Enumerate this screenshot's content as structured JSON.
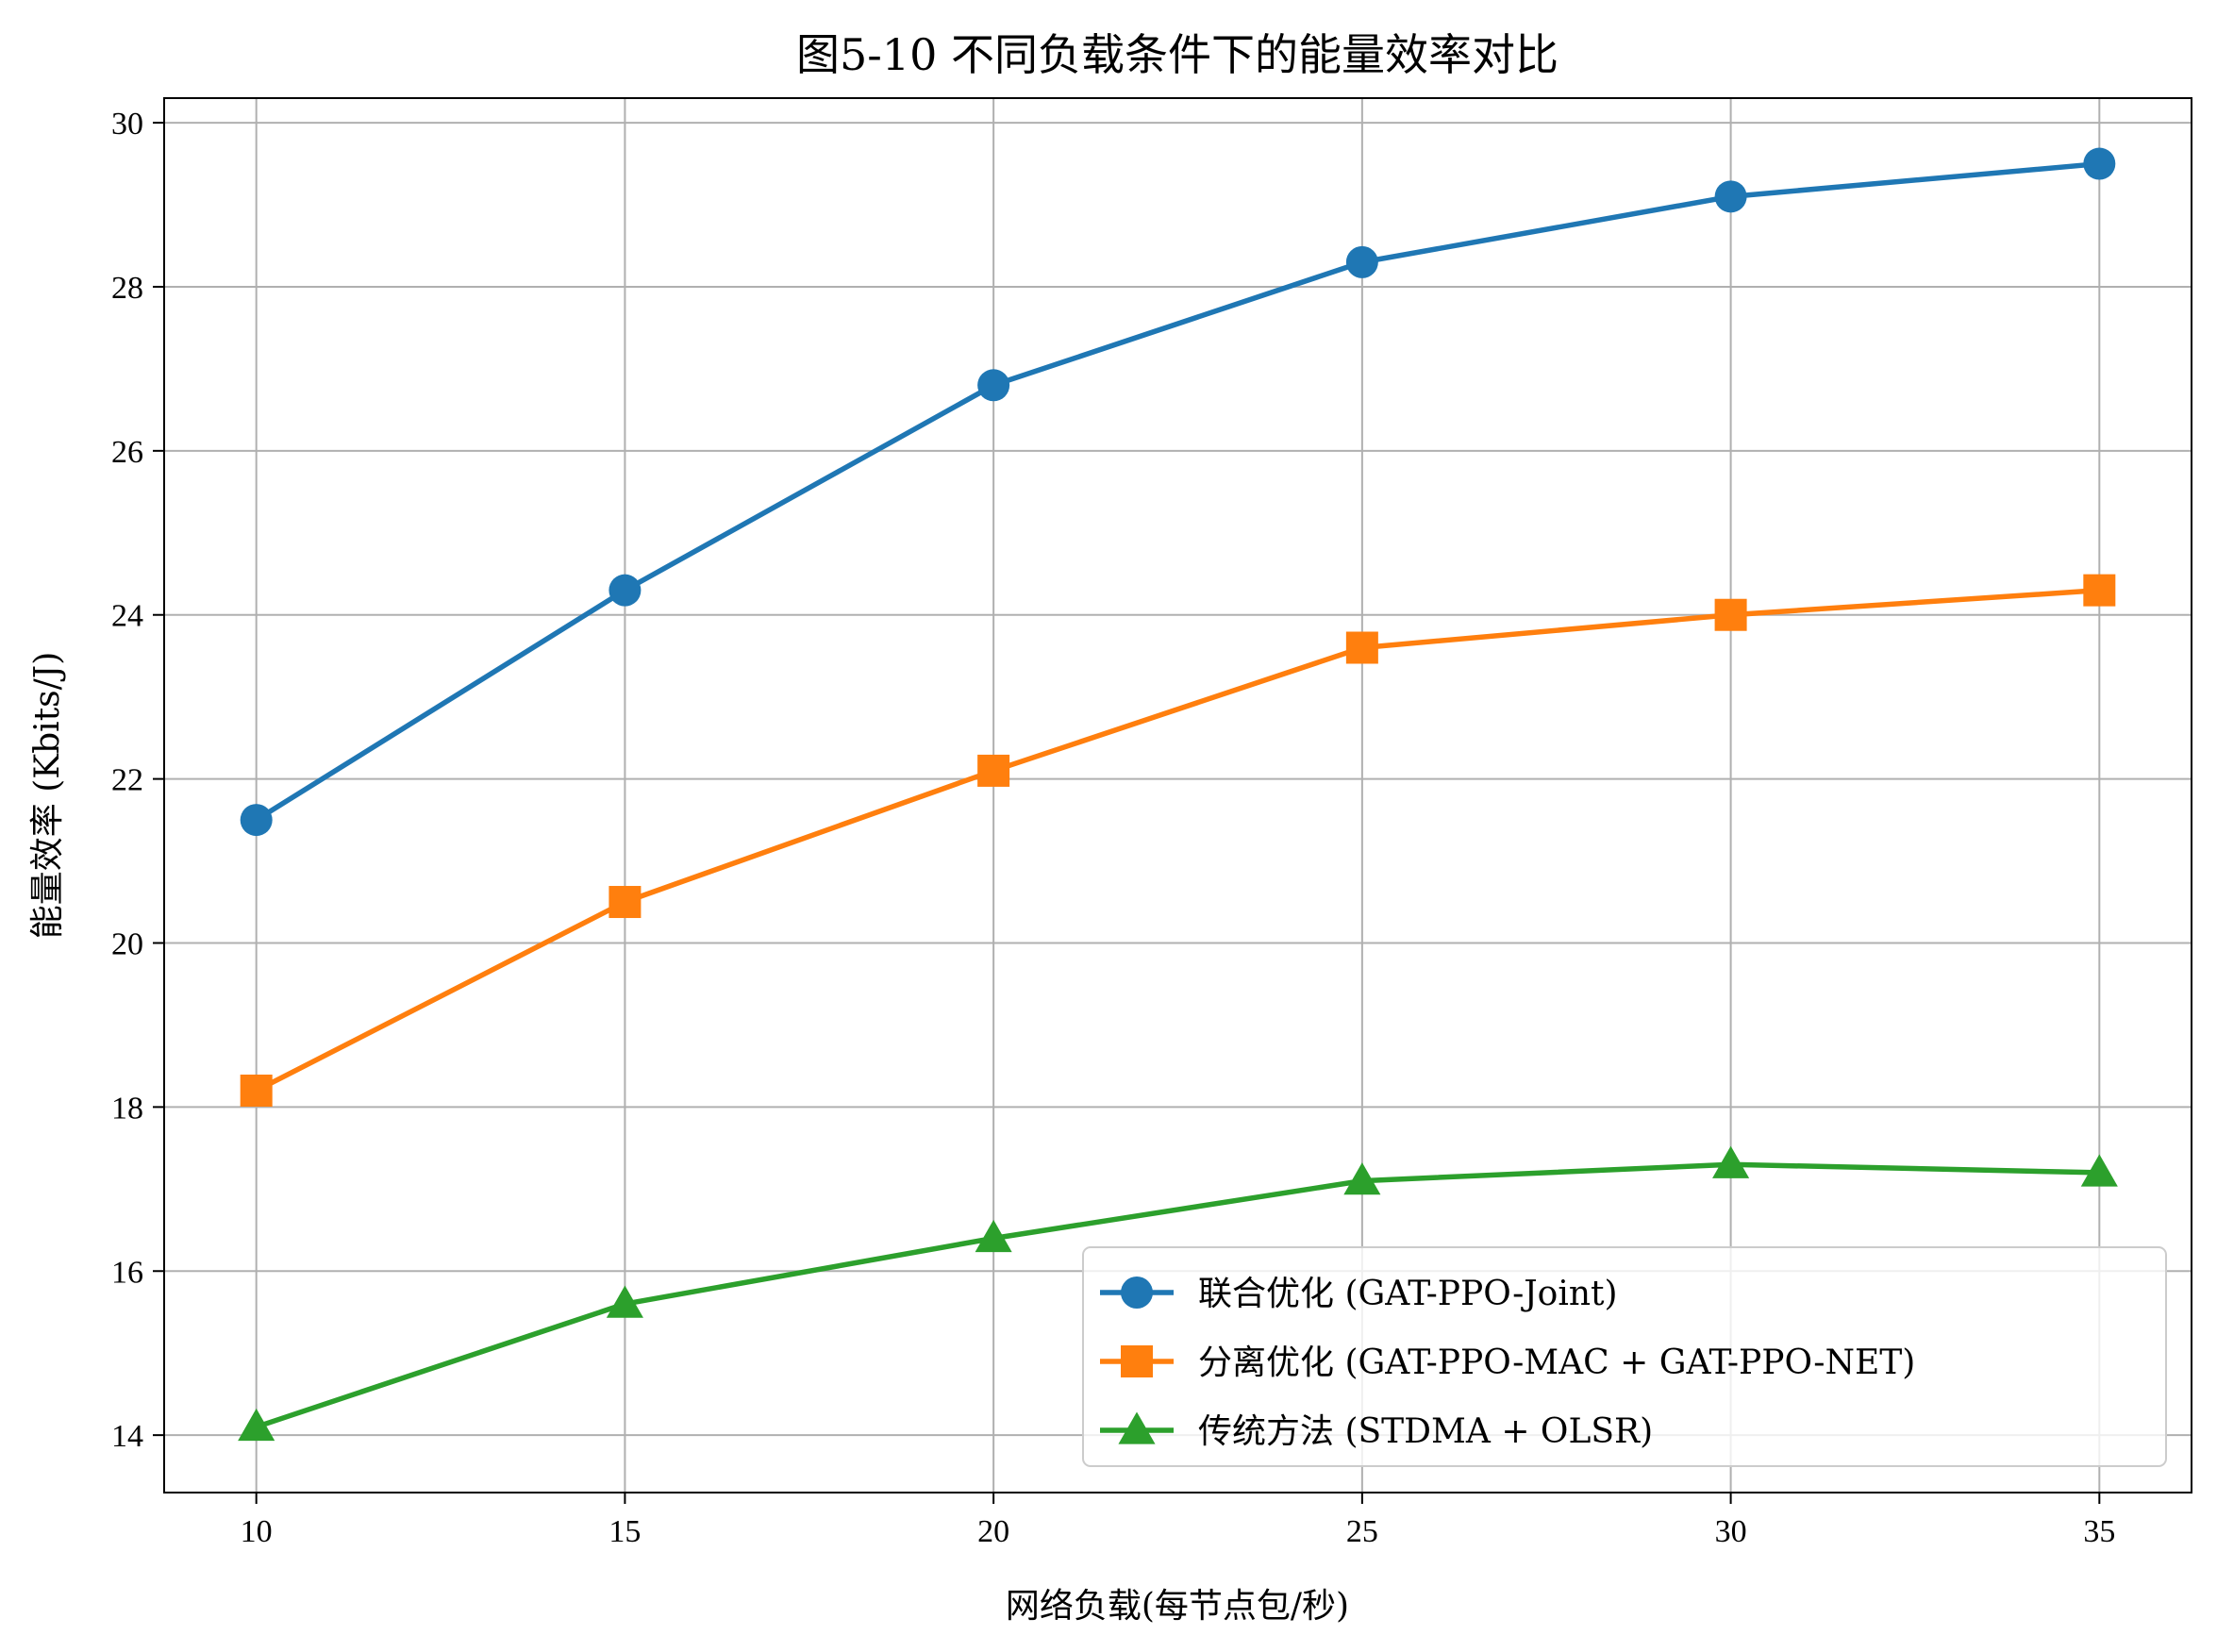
{
  "chart_data": {
    "type": "line",
    "title": "图5-10 不同负载条件下的能量效率对比",
    "xlabel": "网络负载(每节点包/秒)",
    "ylabel": "能量效率 (Kbits/J)",
    "x": [
      10,
      15,
      20,
      25,
      30,
      35
    ],
    "xlim": [
      8.75,
      36.25
    ],
    "ylim": [
      13.3,
      30.3
    ],
    "xticks": [
      10,
      15,
      20,
      25,
      30,
      35
    ],
    "yticks": [
      14,
      16,
      18,
      20,
      22,
      24,
      26,
      28,
      30
    ],
    "grid": true,
    "legend_position": "lower right",
    "series": [
      {
        "name": "联合优化 (GAT-PPO-Joint)",
        "marker": "circle",
        "color": "#1f77b4",
        "values": [
          21.5,
          24.3,
          26.8,
          28.3,
          29.1,
          29.5
        ]
      },
      {
        "name": "分离优化 (GAT-PPO-MAC + GAT-PPO-NET)",
        "marker": "square",
        "color": "#ff7f0e",
        "values": [
          18.2,
          20.5,
          22.1,
          23.6,
          24.0,
          24.3
        ]
      },
      {
        "name": "传统方法 (STDMA + OLSR)",
        "marker": "triangle",
        "color": "#2ca02c",
        "values": [
          14.1,
          15.6,
          16.4,
          17.1,
          17.3,
          17.2
        ]
      }
    ]
  }
}
